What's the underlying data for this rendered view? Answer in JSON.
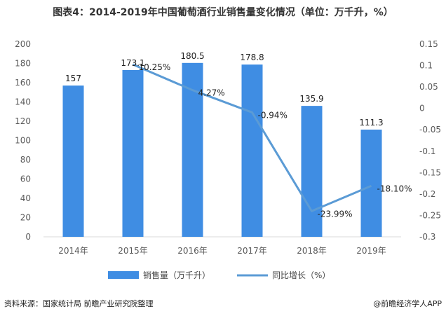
{
  "page": {
    "title": "图表4：2014-2019年中国葡萄酒行业销售量变化情况（单位：万千升，%）",
    "source": "资料来源：国家统计局 前瞻产业研究院整理",
    "brand": "@前瞻经济学人APP"
  },
  "colors": {
    "bar": "#3f8de3",
    "line": "#5b9bd5",
    "axis_text": "#595959",
    "baseline": "#d9d9d9"
  },
  "chart_data": {
    "type": "bar",
    "title": "图表4：2014-2019年中国葡萄酒行业销售量变化情况（单位：万千升，%）",
    "categories": [
      "2014年",
      "2015年",
      "2016年",
      "2017年",
      "2018年",
      "2019年"
    ],
    "series": [
      {
        "name": "销售量（万千升）",
        "type": "bar",
        "axis": "left",
        "values": [
          157,
          173.1,
          180.5,
          178.8,
          135.9,
          111.3
        ],
        "labels": [
          "157",
          "173.1",
          "180.5",
          "178.8",
          "135.9",
          "111.3"
        ]
      },
      {
        "name": "同比增长（%）",
        "type": "line",
        "axis": "right",
        "values": [
          null,
          0.1025,
          0.0427,
          -0.0094,
          -0.2399,
          -0.181
        ],
        "labels": [
          "",
          "10.25%",
          "4.27%",
          "-0.94%",
          "-23.99%",
          "-18.10%"
        ]
      }
    ],
    "y_left": {
      "lim": [
        0,
        200
      ],
      "ticks": [
        0,
        20,
        40,
        60,
        80,
        100,
        120,
        140,
        160,
        180,
        200
      ],
      "tick_labels": [
        "0",
        "20",
        "40",
        "60",
        "80",
        "100",
        "120",
        "140",
        "160",
        "180",
        "200"
      ]
    },
    "y_right": {
      "lim": [
        -0.3,
        0.15
      ],
      "ticks": [
        -0.3,
        -0.25,
        -0.2,
        -0.15,
        -0.1,
        -0.05,
        0,
        0.05,
        0.1,
        0.15
      ],
      "tick_labels": [
        "-0.3",
        "-0.25",
        "-0.2",
        "-0.15",
        "-0.1",
        "-0.05",
        "0",
        "0.05",
        "0.1",
        "0.15"
      ]
    },
    "legend": {
      "position": "bottom",
      "entries": [
        "销售量（万千升）",
        "同比增长（%）"
      ]
    },
    "grid": false
  }
}
